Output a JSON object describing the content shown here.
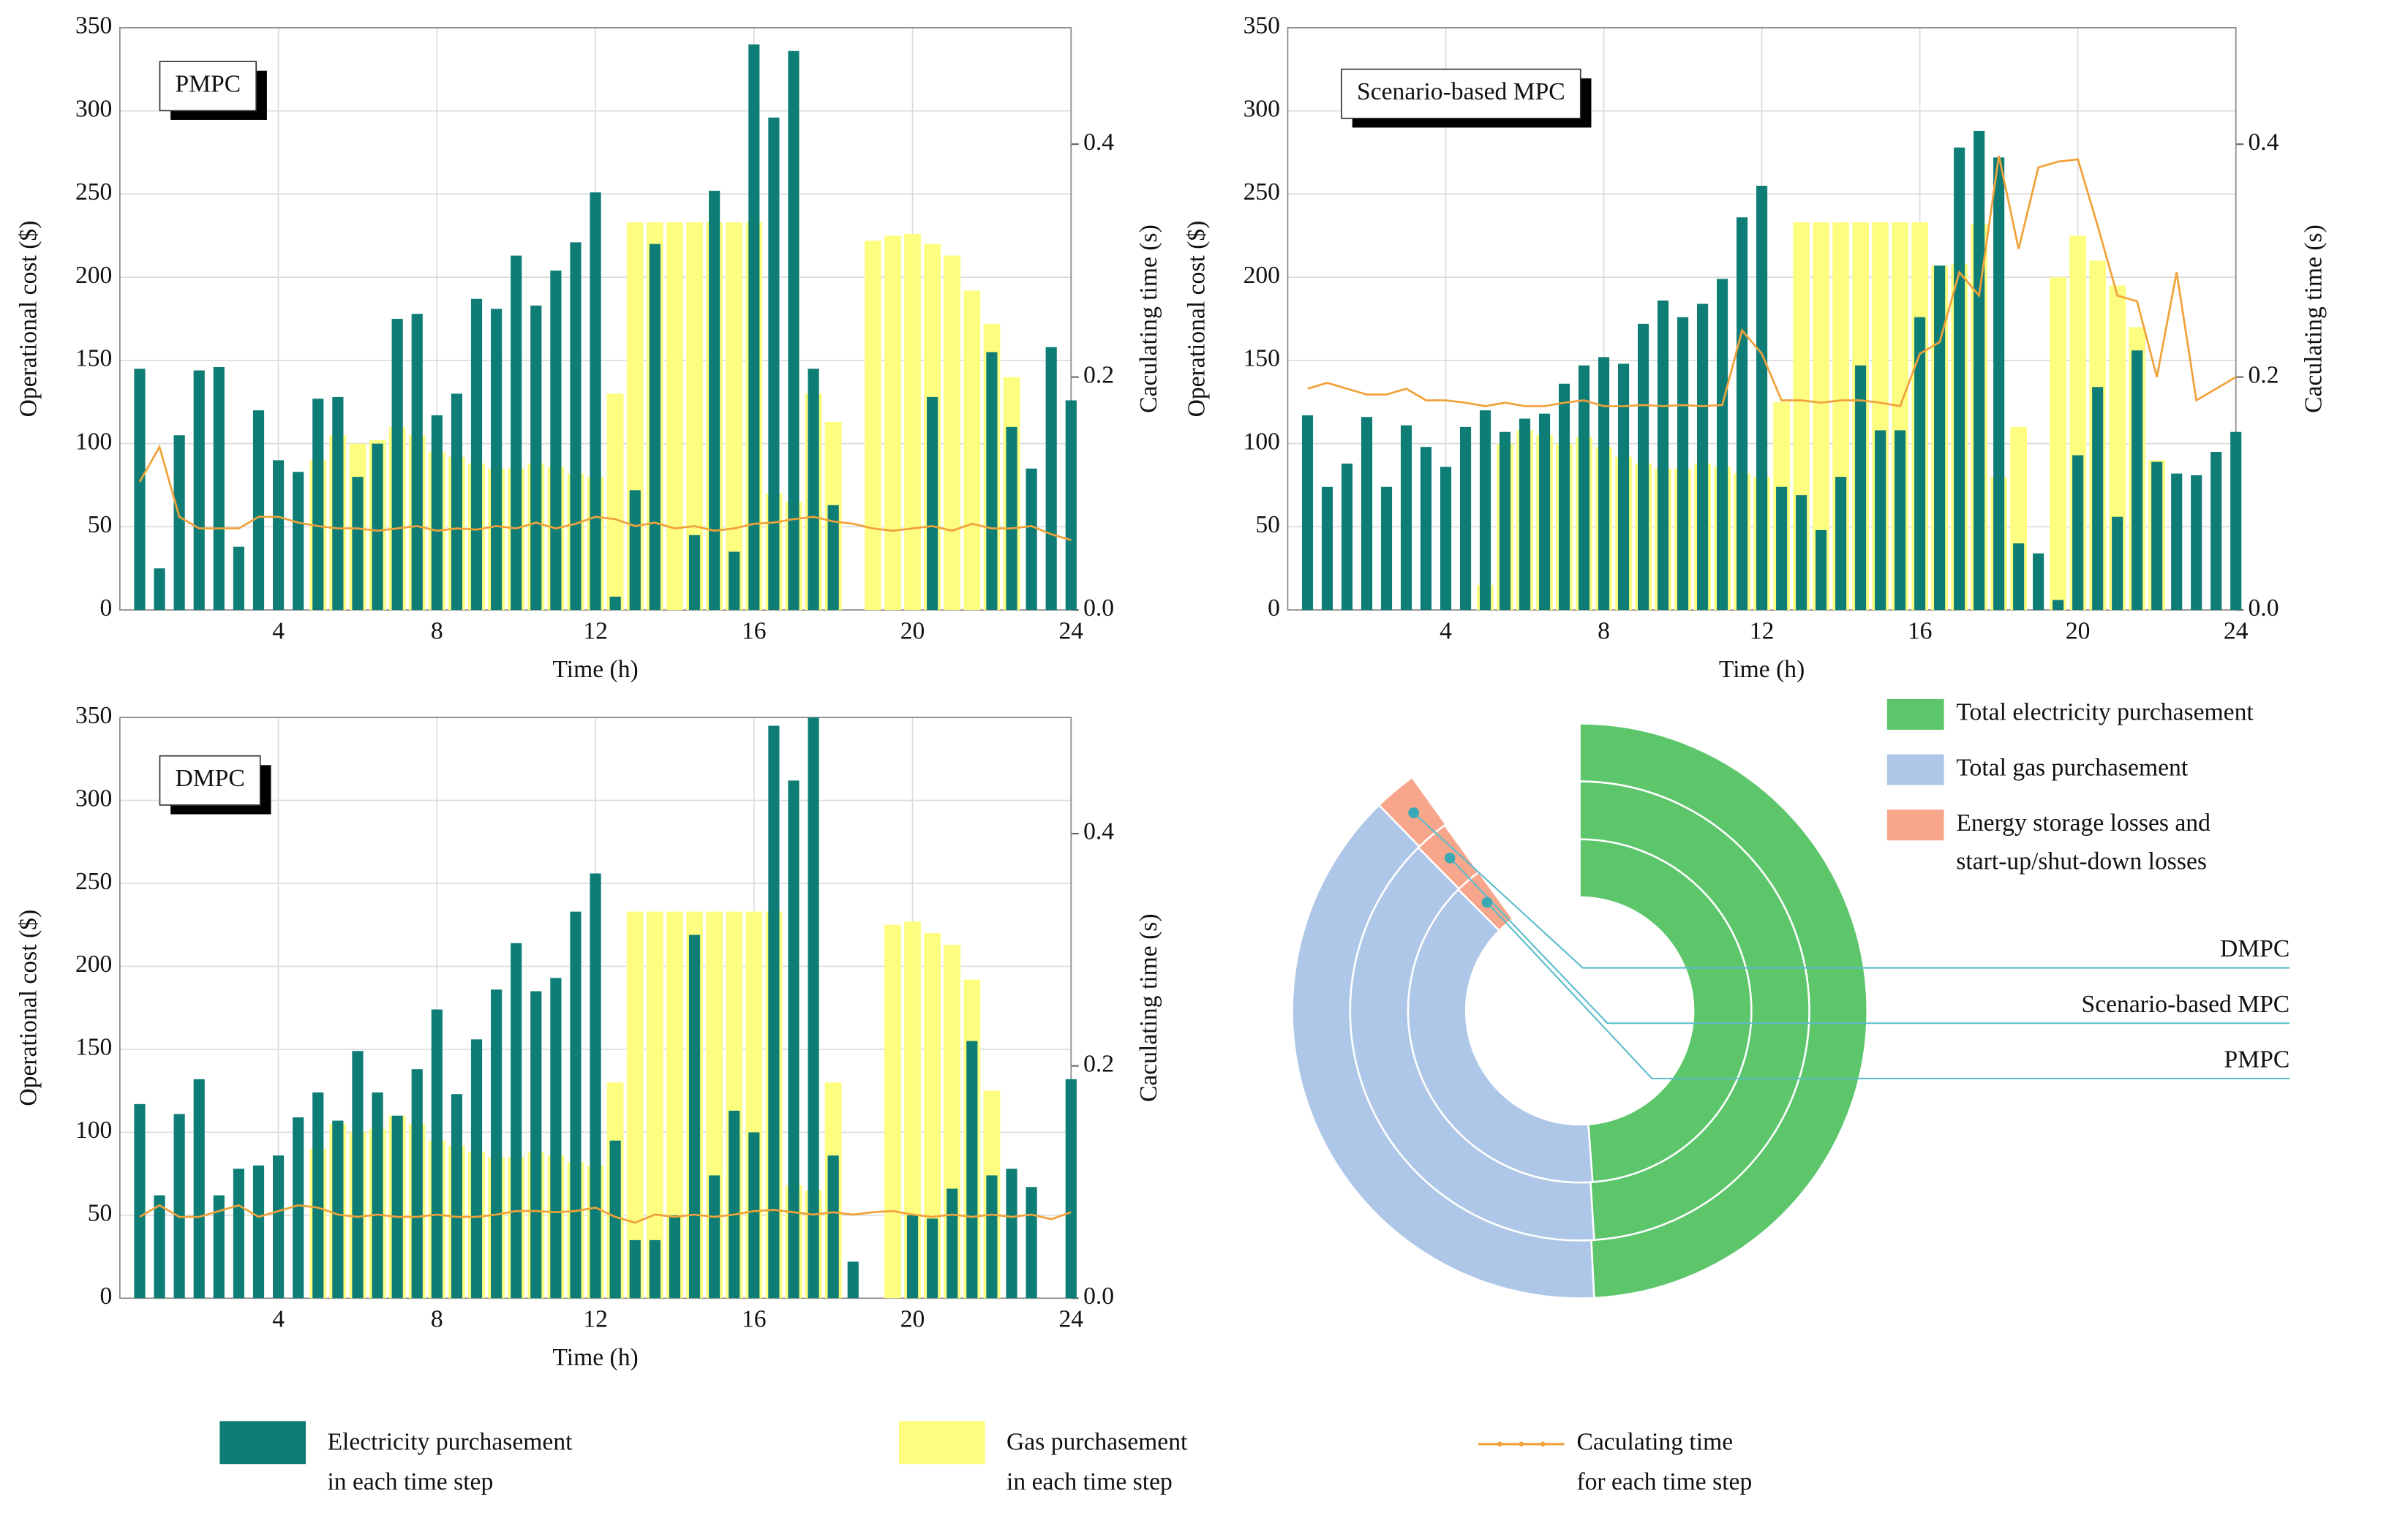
{
  "chart_data": [
    {
      "type": "combo",
      "title": "PMPC",
      "xlabel": "Time (h)",
      "ylabel": "Operational cost ($)",
      "y2label": "Caculating time (s)",
      "x": [
        0.5,
        1,
        1.5,
        2,
        2.5,
        3,
        3.5,
        4,
        4.5,
        5,
        5.5,
        6,
        6.5,
        7,
        7.5,
        8,
        8.5,
        9,
        9.5,
        10,
        10.5,
        11,
        11.5,
        12,
        12.5,
        13,
        13.5,
        14,
        14.5,
        15,
        15.5,
        16,
        16.5,
        17,
        17.5,
        18,
        18.5,
        19,
        19.5,
        20,
        20.5,
        21,
        21.5,
        22,
        22.5,
        23,
        23.5,
        24
      ],
      "xlim": [
        0,
        24
      ],
      "xticks": [
        4,
        8,
        12,
        16,
        20,
        24
      ],
      "ylim": [
        0,
        350
      ],
      "yticks": [
        0,
        50,
        100,
        150,
        200,
        250,
        300,
        350
      ],
      "y2lim": [
        0,
        0.5
      ],
      "y2ticks": [
        {
          "value": 0,
          "label": "0.0"
        },
        0.2,
        0.4
      ],
      "grid": true,
      "series": [
        {
          "values": [
            145,
            25,
            105,
            144,
            146,
            38,
            120,
            90,
            83,
            127,
            128,
            80,
            100,
            175,
            178,
            117,
            130,
            187,
            181,
            213,
            183,
            204,
            221,
            251,
            8,
            72,
            220,
            0,
            45,
            252,
            35,
            340,
            296,
            336,
            145,
            63,
            0,
            0,
            0,
            0,
            128,
            0,
            0,
            155,
            110,
            85,
            158,
            126
          ]
        },
        {
          "values": [
            0,
            0,
            0,
            0,
            0,
            0,
            0,
            0,
            0,
            90,
            105,
            100,
            102,
            110,
            105,
            95,
            92,
            88,
            85,
            85,
            88,
            86,
            82,
            80,
            130,
            233,
            233,
            233,
            233,
            233,
            233,
            233,
            70,
            65,
            130,
            113,
            0,
            222,
            225,
            226,
            220,
            213,
            192,
            172,
            140,
            0,
            0,
            0
          ]
        },
        {
          "axis": "y2",
          "values": [
            0.11,
            0.14,
            0.08,
            0.07,
            0.07,
            0.07,
            0.08,
            0.08,
            0.075,
            0.072,
            0.07,
            0.07,
            0.068,
            0.07,
            0.072,
            0.068,
            0.07,
            0.069,
            0.072,
            0.07,
            0.075,
            0.07,
            0.074,
            0.08,
            0.078,
            0.072,
            0.075,
            0.07,
            0.072,
            0.068,
            0.07,
            0.074,
            0.075,
            0.078,
            0.08,
            0.076,
            0.074,
            0.07,
            0.068,
            0.07,
            0.072,
            0.068,
            0.074,
            0.07,
            0.07,
            0.072,
            0.065,
            0.06
          ]
        }
      ]
    },
    {
      "type": "combo",
      "title": "Scenario-based MPC",
      "xlabel": "Time (h)",
      "ylabel": "Operational cost ($)",
      "y2label": "Caculating time (s)",
      "x": [
        0.5,
        1,
        1.5,
        2,
        2.5,
        3,
        3.5,
        4,
        4.5,
        5,
        5.5,
        6,
        6.5,
        7,
        7.5,
        8,
        8.5,
        9,
        9.5,
        10,
        10.5,
        11,
        11.5,
        12,
        12.5,
        13,
        13.5,
        14,
        14.5,
        15,
        15.5,
        16,
        16.5,
        17,
        17.5,
        18,
        18.5,
        19,
        19.5,
        20,
        20.5,
        21,
        21.5,
        22,
        22.5,
        23,
        23.5,
        24
      ],
      "xlim": [
        0,
        24
      ],
      "xticks": [
        4,
        8,
        12,
        16,
        20,
        24
      ],
      "ylim": [
        0,
        350
      ],
      "yticks": [
        0,
        50,
        100,
        150,
        200,
        250,
        300,
        350
      ],
      "y2lim": [
        0,
        0.5
      ],
      "y2ticks": [
        {
          "value": 0,
          "label": "0.0"
        },
        0.2,
        0.4
      ],
      "grid": true,
      "series": [
        {
          "values": [
            117,
            74,
            88,
            116,
            74,
            111,
            98,
            86,
            110,
            120,
            107,
            115,
            118,
            136,
            147,
            152,
            148,
            172,
            186,
            176,
            184,
            199,
            236,
            255,
            74,
            69,
            48,
            80,
            147,
            108,
            108,
            176,
            207,
            278,
            288,
            272,
            40,
            34,
            6,
            93,
            134,
            56,
            156,
            89,
            82,
            81,
            95,
            107
          ]
        },
        {
          "values": [
            0,
            0,
            0,
            0,
            0,
            0,
            0,
            0,
            0,
            15,
            100,
            108,
            105,
            100,
            104,
            98,
            92,
            88,
            85,
            85,
            88,
            86,
            82,
            80,
            125,
            233,
            233,
            233,
            233,
            233,
            233,
            233,
            207,
            208,
            232,
            80,
            110,
            0,
            200,
            225,
            210,
            195,
            170,
            90,
            0,
            0,
            0,
            0
          ]
        },
        {
          "axis": "y2",
          "values": [
            0.19,
            0.195,
            0.19,
            0.185,
            0.185,
            0.19,
            0.18,
            0.18,
            0.178,
            0.175,
            0.178,
            0.175,
            0.175,
            0.178,
            0.18,
            0.175,
            0.175,
            0.176,
            0.175,
            0.176,
            0.175,
            0.176,
            0.24,
            0.22,
            0.18,
            0.18,
            0.178,
            0.18,
            0.18,
            0.178,
            0.175,
            0.22,
            0.23,
            0.29,
            0.27,
            0.39,
            0.31,
            0.38,
            0.385,
            0.387,
            0.33,
            0.27,
            0.265,
            0.2,
            0.29,
            0.18,
            0.19,
            0.2
          ]
        }
      ]
    },
    {
      "type": "combo",
      "title": "DMPC",
      "xlabel": "Time (h)",
      "ylabel": "Operational cost ($)",
      "y2label": "Caculating time (s)",
      "x": [
        0.5,
        1,
        1.5,
        2,
        2.5,
        3,
        3.5,
        4,
        4.5,
        5,
        5.5,
        6,
        6.5,
        7,
        7.5,
        8,
        8.5,
        9,
        9.5,
        10,
        10.5,
        11,
        11.5,
        12,
        12.5,
        13,
        13.5,
        14,
        14.5,
        15,
        15.5,
        16,
        16.5,
        17,
        17.5,
        18,
        18.5,
        19,
        19.5,
        20,
        20.5,
        21,
        21.5,
        22,
        22.5,
        23,
        23.5,
        24
      ],
      "xlim": [
        0,
        24
      ],
      "xticks": [
        4,
        8,
        12,
        16,
        20,
        24
      ],
      "ylim": [
        0,
        350
      ],
      "yticks": [
        0,
        50,
        100,
        150,
        200,
        250,
        300,
        350
      ],
      "y2lim": [
        0,
        0.5
      ],
      "y2ticks": [
        {
          "value": 0,
          "label": "0.0"
        },
        0.2,
        0.4
      ],
      "grid": true,
      "series": [
        {
          "values": [
            117,
            62,
            111,
            132,
            62,
            78,
            80,
            86,
            109,
            124,
            107,
            149,
            124,
            110,
            138,
            174,
            123,
            156,
            186,
            214,
            185,
            193,
            233,
            256,
            95,
            35,
            35,
            50,
            219,
            74,
            113,
            100,
            345,
            312,
            350,
            86,
            22,
            0,
            0,
            50,
            48,
            66,
            155,
            74,
            78,
            67,
            0,
            132
          ]
        },
        {
          "values": [
            0,
            0,
            0,
            0,
            0,
            0,
            0,
            0,
            0,
            90,
            105,
            100,
            102,
            110,
            105,
            95,
            92,
            88,
            85,
            85,
            88,
            86,
            82,
            80,
            130,
            233,
            233,
            233,
            233,
            233,
            233,
            233,
            233,
            68,
            65,
            130,
            0,
            0,
            225,
            227,
            220,
            213,
            192,
            125,
            0,
            0,
            0,
            0
          ]
        },
        {
          "axis": "y2",
          "values": [
            0.07,
            0.08,
            0.07,
            0.07,
            0.075,
            0.08,
            0.07,
            0.075,
            0.08,
            0.078,
            0.072,
            0.07,
            0.072,
            0.07,
            0.07,
            0.072,
            0.07,
            0.07,
            0.072,
            0.075,
            0.075,
            0.074,
            0.075,
            0.078,
            0.07,
            0.065,
            0.072,
            0.07,
            0.072,
            0.07,
            0.072,
            0.075,
            0.076,
            0.074,
            0.072,
            0.074,
            0.072,
            0.074,
            0.075,
            0.072,
            0.07,
            0.072,
            0.07,
            0.072,
            0.07,
            0.072,
            0.068,
            0.074
          ]
        }
      ]
    },
    {
      "type": "donut",
      "categories": [
        "DMPC",
        "Scenario-based MPC",
        "PMPC"
      ],
      "series": [
        {
          "name": [
            "Total electricity purchasement"
          ],
          "color": "#5dc66b",
          "values": [
            49.2,
            49.0,
            48.8
          ]
        },
        {
          "name": [
            "Total gas purchasement"
          ],
          "color": "#aec7e8",
          "values": [
            38.5,
            38.6,
            38.7
          ]
        },
        {
          "name": [
            "Energy storage losses and",
            "start-up/shut-down losses"
          ],
          "color": "#f7a68c",
          "values": [
            2.4,
            2.4,
            2.5
          ]
        }
      ]
    }
  ],
  "legend": [
    {
      "name": [
        "Electricity purchasement",
        "in each time step"
      ],
      "color": "#0e7d76"
    },
    {
      "name": [
        "Gas purchasement",
        "in each time step"
      ],
      "color": "#fdfd80"
    },
    {
      "name": [
        "Caculating time",
        "for each time step"
      ],
      "color": "#f0a23a"
    }
  ]
}
